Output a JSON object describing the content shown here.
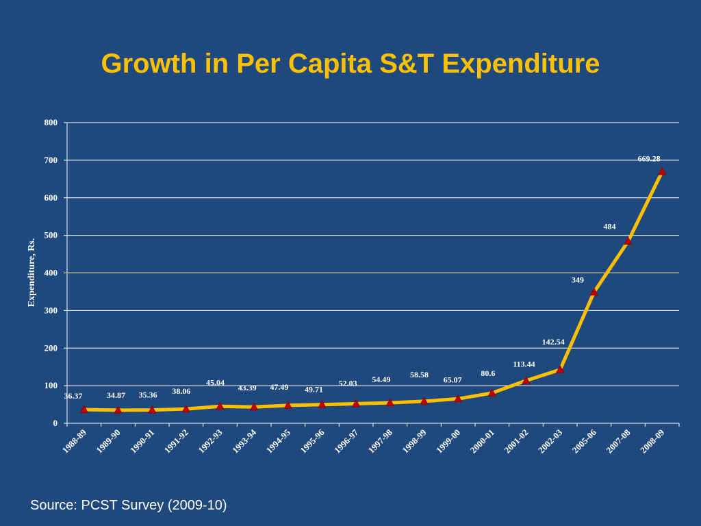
{
  "slide": {
    "title": "Growth in Per Capita S&T Expenditure",
    "source": "Source: PCST Survey (2009-10)"
  },
  "colors": {
    "background": "#1f497d",
    "title": "#ffc000",
    "line": "#ffc000",
    "marker": "#c00000",
    "grid": "#ffffff",
    "text": "#ffffff"
  },
  "chart_data": {
    "type": "line",
    "title": "",
    "xlabel": "",
    "ylabel": "Expenditure, Rs.",
    "ylim": [
      0,
      800
    ],
    "yticks": [
      "0",
      "100",
      "200",
      "300",
      "400",
      "500",
      "600",
      "700",
      "800"
    ],
    "grid": true,
    "legend": "none",
    "categories": [
      "1988-89",
      "1989-90",
      "1990-91",
      "1991-92",
      "1992-93",
      "1993-94",
      "1994-95",
      "1995-96",
      "1996-97",
      "1997-98",
      "1998-99",
      "1999-00",
      "2000-01",
      "2001-02",
      "2002-03",
      "2005-06",
      "2007-08",
      "2008-09"
    ],
    "series": [
      {
        "values": [
          36.37,
          34.87,
          35.36,
          38.06,
          45.04,
          43.39,
          47.49,
          49.71,
          52.03,
          54.49,
          58.58,
          65.07,
          80.6,
          113.44,
          142.54,
          349,
          484,
          669.28
        ],
        "labels": [
          "36.37",
          "34.87",
          "35.36",
          "38.06",
          "45.04",
          "43.39",
          "47.49",
          "49.71",
          "52.03",
          "54.49",
          "58.58",
          "65.07",
          "80.6",
          "113.44",
          "142.54",
          "349",
          "484",
          "669.28"
        ]
      }
    ]
  }
}
